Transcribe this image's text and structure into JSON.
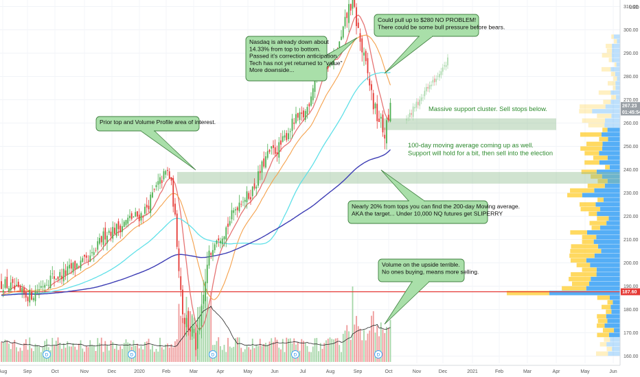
{
  "chart_data": {
    "type": "candlestick",
    "y_axis": {
      "ticks": [
        160,
        170,
        180,
        190,
        200,
        210,
        220,
        230,
        240,
        250,
        260,
        270,
        280,
        290,
        300,
        310
      ],
      "tick_labels": [
        "160.00",
        "170.00",
        "180.00",
        "190.00",
        "200.00",
        "210.00",
        "220.00",
        "230.00",
        "240.00",
        "250.00",
        "260.00",
        "270.00",
        "280.00",
        "290.00",
        "300.00",
        "310.00"
      ],
      "currency": "USD",
      "range": [
        157,
        312
      ]
    },
    "x_axis": {
      "tick_labels": [
        "Aug",
        "Sep",
        "Oct",
        "Nov",
        "Dec",
        "2020",
        "Feb",
        "Mar",
        "Apr",
        "May",
        "Jun",
        "Jul",
        "Aug",
        "Sep",
        "Oct",
        "Nov",
        "Dec",
        "2021",
        "Feb",
        "Mar",
        "Apr",
        "May",
        "Jun"
      ]
    },
    "price_labels": [
      {
        "value": "267.23",
        "color": "#9aa0a6"
      },
      {
        "value": "01:45:54",
        "color": "#9aa0a6"
      },
      {
        "value": "187.60",
        "color": "#e53935"
      }
    ],
    "horizontal_line": {
      "value": 187.6,
      "color": "#e53935"
    },
    "zones": [
      {
        "from": 234,
        "to": 239,
        "color": "#8fbc8f"
      },
      {
        "from": 257,
        "to": 262,
        "color": "#8fbc8f"
      }
    ],
    "anchors": [
      {
        "month": "Aug 2019",
        "close": 191
      },
      {
        "month": "Sep 2019",
        "close": 186
      },
      {
        "month": "Oct 2019",
        "close": 194
      },
      {
        "month": "Nov 2019",
        "close": 200
      },
      {
        "month": "Dec 2019",
        "close": 214
      },
      {
        "month": "Jan 2020",
        "close": 220
      },
      {
        "month": "Feb 2020",
        "close": 236
      },
      {
        "month": "Mar 2020",
        "close": 176
      },
      {
        "month": "Apr 2020",
        "close": 212
      },
      {
        "month": "May 2020",
        "close": 228
      },
      {
        "month": "Jun 2020",
        "close": 248
      },
      {
        "month": "Jul 2020",
        "close": 262
      },
      {
        "month": "Aug 2020",
        "close": 284
      },
      {
        "month": "Sep 2020",
        "close": 303
      },
      {
        "month": "Sep 2020 end",
        "close": 262
      },
      {
        "month": "Oct 2020",
        "close": 272
      },
      {
        "month": "Dec 2020",
        "close": 287
      }
    ],
    "series": [
      {
        "name": "",
        "kind": "ma-short",
        "color": "#e57373"
      },
      {
        "name": "",
        "kind": "ma-mid",
        "color": "#f5a04a"
      },
      {
        "name": "",
        "kind": "ma-100",
        "color": "#5fe0e8"
      },
      {
        "name": "",
        "kind": "ma-200",
        "color": "#3c3cb4"
      }
    ],
    "volume": {
      "color_up": "#a5d6a7",
      "color_down": "#ef9a9a",
      "avg_color": "#222222"
    },
    "volume_profile": {
      "color_up": "#42a5f5",
      "color_down": "#ffd54f"
    }
  },
  "annotations": [
    {
      "id": "nasdaq",
      "lines": [
        "Nasdaq is already down about",
        "14.33% from top to bottom.",
        "Passed it's correction anticipation.",
        "Tech has not yet returned to \"value\"",
        "More downside..."
      ]
    },
    {
      "id": "pullup",
      "lines": [
        "Could pull up to $280 NO PROBLEM!",
        "There could be some bull pressure before bears."
      ]
    },
    {
      "id": "prior-top",
      "lines": [
        "Prior top and Volume Profile area of interest."
      ]
    },
    {
      "id": "nearly",
      "lines": [
        "Nearly 20% from tops you can find the 200-day Moving average.",
        "AKA the target... Under 10,000 NQ futures get SLIPERRY"
      ]
    },
    {
      "id": "volume",
      "lines": [
        "Volume on the upside terrible.",
        "No ones buying, means more selling."
      ]
    }
  ],
  "free_texts": [
    {
      "id": "support",
      "lines": [
        "Massive support cluster. Sell stops below."
      ]
    },
    {
      "id": "ma100",
      "lines": [
        "100-day moving average coming up as well.",
        "Support will hold for a bit, then sell into the election"
      ]
    }
  ],
  "event_markers": [
    "D",
    "D",
    "D",
    "D",
    "D"
  ]
}
